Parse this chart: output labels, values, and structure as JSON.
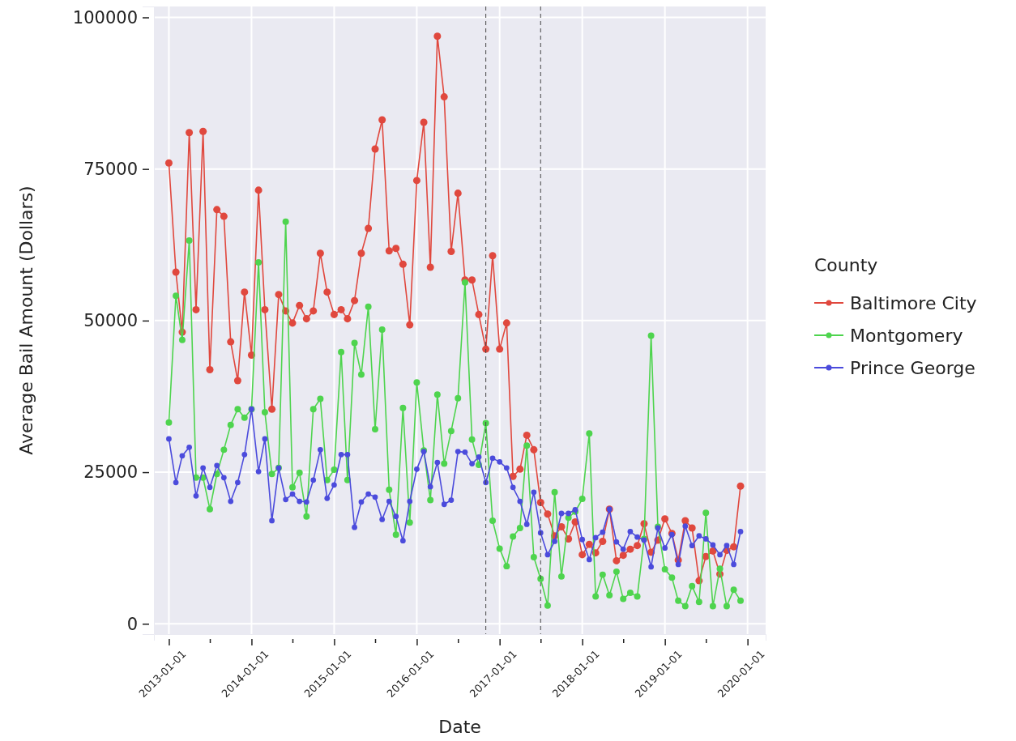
{
  "chart_data": {
    "type": "line",
    "xlabel": "Date",
    "ylabel": "Average Bail Amount (Dollars)",
    "legend_title": "County",
    "legend": "right",
    "grid": true,
    "marker": "circle",
    "line_style": "solid",
    "x": [
      "2013-01",
      "2013-02",
      "2013-03",
      "2013-04",
      "2013-05",
      "2013-06",
      "2013-07",
      "2013-08",
      "2013-09",
      "2013-10",
      "2013-11",
      "2013-12",
      "2014-01",
      "2014-02",
      "2014-03",
      "2014-04",
      "2014-05",
      "2014-06",
      "2014-07",
      "2014-08",
      "2014-09",
      "2014-10",
      "2014-11",
      "2014-12",
      "2015-01",
      "2015-02",
      "2015-03",
      "2015-04",
      "2015-05",
      "2015-06",
      "2015-07",
      "2015-08",
      "2015-09",
      "2015-10",
      "2015-11",
      "2015-12",
      "2016-01",
      "2016-02",
      "2016-03",
      "2016-04",
      "2016-05",
      "2016-06",
      "2016-07",
      "2016-08",
      "2016-09",
      "2016-10",
      "2016-11",
      "2016-12",
      "2017-01",
      "2017-02",
      "2017-03",
      "2017-04",
      "2017-05",
      "2017-06",
      "2017-07",
      "2017-08",
      "2017-09",
      "2017-10",
      "2017-11",
      "2017-12",
      "2018-01",
      "2018-02",
      "2018-03",
      "2018-04",
      "2018-05",
      "2018-06",
      "2018-07",
      "2018-08",
      "2018-09",
      "2018-10",
      "2018-11",
      "2018-12",
      "2019-01",
      "2019-02",
      "2019-03",
      "2019-04",
      "2019-05",
      "2019-06",
      "2019-07",
      "2019-08",
      "2019-09",
      "2019-10",
      "2019-11",
      "2019-12"
    ],
    "series": [
      {
        "name": "Baltimore City",
        "color": "#e0483e",
        "values": [
          76000,
          58000,
          48100,
          81000,
          51800,
          81200,
          41900,
          68300,
          67200,
          46500,
          40100,
          54700,
          44300,
          71500,
          51800,
          35400,
          54300,
          51600,
          49600,
          52500,
          50300,
          51600,
          61100,
          54700,
          51000,
          51800,
          50300,
          53300,
          61100,
          65200,
          78300,
          83100,
          61500,
          61900,
          59300,
          49300,
          73100,
          82700,
          58800,
          96900,
          86900,
          61400,
          71000,
          56700,
          56700,
          51000,
          45300,
          60700,
          45300,
          49600,
          24300,
          25500,
          31100,
          28700,
          20000,
          18100,
          14500,
          16000,
          14000,
          16800,
          11400,
          13100,
          11700,
          13600,
          18900,
          10400,
          11300,
          12300,
          12900,
          16500,
          11800,
          13800,
          17300,
          14900,
          10500,
          17000,
          15800,
          7100,
          11100,
          12000,
          8200,
          12100,
          12700,
          22700
        ]
      },
      {
        "name": "Montgomery",
        "color": "#4ed44e",
        "values": [
          33200,
          54100,
          46800,
          63200,
          24100,
          24100,
          18900,
          24700,
          28700,
          32800,
          35400,
          34000,
          35400,
          59600,
          34900,
          24700,
          25700,
          66300,
          22500,
          24900,
          17700,
          35400,
          37100,
          23700,
          25400,
          44800,
          23700,
          46300,
          41100,
          52300,
          32100,
          48500,
          22100,
          14700,
          35600,
          16700,
          39800,
          28600,
          20400,
          37800,
          26400,
          31800,
          37200,
          56300,
          30400,
          26200,
          33100,
          17000,
          12400,
          9500,
          14400,
          15800,
          29400,
          11000,
          7400,
          3000,
          21700,
          7800,
          17500,
          18500,
          20600,
          31400,
          4500,
          8100,
          4700,
          8600,
          4100,
          5100,
          4500,
          14000,
          47500,
          16000,
          9000,
          7600,
          3800,
          2900,
          6200,
          3600,
          18300,
          2900,
          9100,
          2900,
          5600,
          3800
        ]
      },
      {
        "name": "Prince George",
        "color": "#4b4bdc",
        "values": [
          30500,
          23300,
          27700,
          29100,
          21100,
          25700,
          22500,
          26100,
          24100,
          20200,
          23300,
          27900,
          35400,
          25100,
          30500,
          17000,
          25700,
          20500,
          21400,
          20200,
          20100,
          23700,
          28700,
          20700,
          22900,
          27900,
          27900,
          15900,
          20100,
          21400,
          20900,
          17200,
          20200,
          17700,
          13700,
          20200,
          25500,
          28400,
          22600,
          26600,
          19700,
          20400,
          28400,
          28300,
          26400,
          27500,
          23300,
          27300,
          26700,
          25700,
          22500,
          20200,
          16400,
          21700,
          15000,
          11400,
          13600,
          18200,
          18200,
          18800,
          13900,
          10600,
          14200,
          15100,
          18900,
          13500,
          12300,
          15200,
          14300,
          13800,
          9400,
          15800,
          12500,
          14700,
          9800,
          16100,
          12900,
          14500,
          14000,
          13000,
          11400,
          12900,
          9800,
          15200
        ]
      }
    ],
    "xlim": [
      "2012-10-27",
      "2020-03-21"
    ],
    "xticks": [
      "2013-01-01",
      {
        "value": "2013-07-01",
        "label": null
      },
      "2014-01-01",
      {
        "value": "2014-07-01",
        "label": null
      },
      "2015-01-01",
      {
        "value": "2015-07-01",
        "label": null
      },
      "2016-01-01",
      {
        "value": "2016-07-01",
        "label": null
      },
      "2017-01-01",
      {
        "value": "2017-07-01",
        "label": null
      },
      "2018-01-01",
      {
        "value": "2018-07-01",
        "label": null
      },
      "2019-01-01",
      {
        "value": "2019-07-01",
        "label": null
      },
      "2020-01-01"
    ],
    "ylim": [
      -1700,
      101800
    ],
    "yticks": [
      0,
      25000,
      50000,
      75000,
      100000
    ],
    "ref_lines": [
      {
        "axis": "x",
        "value": "2016-11-01",
        "color": "#444444",
        "line_style": "dashed"
      },
      {
        "axis": "x",
        "value": "2017-07-01",
        "color": "#444444",
        "line_style": "dashed"
      }
    ]
  }
}
